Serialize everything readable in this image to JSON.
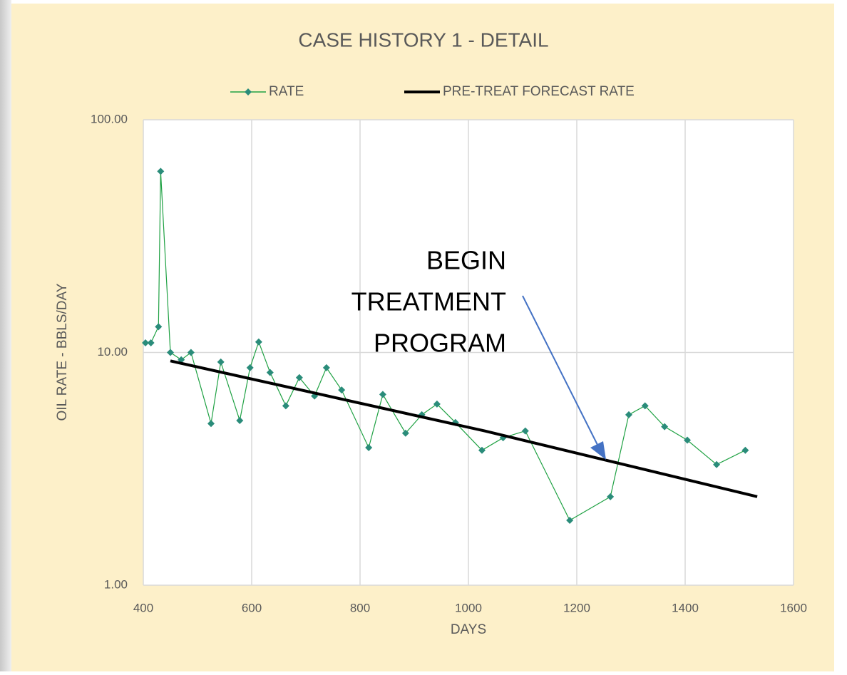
{
  "chart_data": {
    "type": "line",
    "title": "CASE HISTORY 1 - DETAIL",
    "xlabel": "DAYS",
    "ylabel": "OIL RATE - BBLS/DAY",
    "xlim": [
      400,
      1600
    ],
    "xticks": [
      400,
      600,
      800,
      1000,
      1200,
      1400,
      1600
    ],
    "ylim": [
      1,
      100
    ],
    "ylog": true,
    "yticks": [
      {
        "value": 1,
        "label": "1.00"
      },
      {
        "value": 10,
        "label": "10.00"
      },
      {
        "value": 100,
        "label": "100.00"
      }
    ],
    "grid": true,
    "legend": "top",
    "annotation": [
      "BEGIN",
      "TREATMENT",
      "PROGRAM"
    ],
    "annotation_arrow_color": "#4472c4",
    "series": [
      {
        "name": "RATE",
        "color": "#1fa143",
        "marker": "diamond",
        "marker_color": "#2a8c7a",
        "x": [
          404,
          414,
          428,
          432,
          450,
          470,
          488,
          525,
          543,
          578,
          597,
          613,
          634,
          663,
          688,
          716,
          738,
          766,
          816,
          842,
          884,
          914,
          942,
          976,
          1025,
          1064,
          1105,
          1187,
          1262,
          1296,
          1326,
          1362,
          1404,
          1458,
          1511
        ],
        "values": [
          11.0,
          11.0,
          12.9,
          60,
          10.0,
          9.3,
          10.0,
          4.95,
          9.1,
          5.1,
          8.6,
          11.1,
          8.2,
          5.9,
          7.8,
          6.5,
          8.6,
          6.9,
          3.9,
          6.6,
          4.5,
          5.4,
          6.0,
          5.0,
          3.8,
          4.3,
          4.6,
          1.9,
          2.4,
          5.4,
          5.9,
          4.8,
          4.2,
          3.3,
          3.8
        ]
      },
      {
        "name": "PRE-TREAT FORECAST RATE",
        "color": "#000000",
        "marker": "none",
        "x": [
          450,
          1030,
          1533
        ],
        "values": [
          9.2,
          4.6,
          2.4
        ]
      }
    ]
  }
}
